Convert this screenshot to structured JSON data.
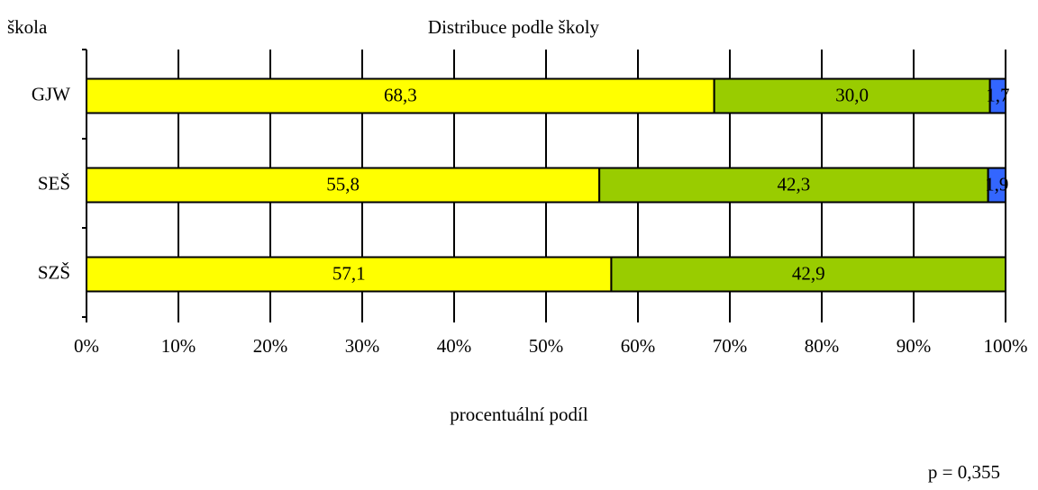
{
  "chart_data": {
    "type": "stacked_bar_horizontal",
    "title": "Distribuce podle školy",
    "y_label": "škola",
    "x_label": "procentuální podíl",
    "annotation": "p = 0,355",
    "categories": [
      "GJW",
      "SEŠ",
      "SZŠ"
    ],
    "series": [
      {
        "color": "#ffff00",
        "values": [
          68.3,
          55.8,
          57.1
        ],
        "value_labels": [
          "68,3",
          "55,8",
          "57,1"
        ]
      },
      {
        "color": "#99cc00",
        "values": [
          30.0,
          42.3,
          42.9
        ],
        "value_labels": [
          "30,0",
          "42,3",
          "42,9"
        ]
      },
      {
        "color": "#3366ff",
        "values": [
          1.7,
          1.9,
          null
        ],
        "value_labels": [
          "1,7",
          "1,9",
          null
        ]
      }
    ],
    "xlim": [
      0,
      100
    ],
    "xticks": [
      {
        "value": 0,
        "label": "0%"
      },
      {
        "value": 10,
        "label": "10%"
      },
      {
        "value": 20,
        "label": "20%"
      },
      {
        "value": 30,
        "label": "30%"
      },
      {
        "value": 40,
        "label": "40%"
      },
      {
        "value": 50,
        "label": "50%"
      },
      {
        "value": 60,
        "label": "60%"
      },
      {
        "value": 70,
        "label": "70%"
      },
      {
        "value": 80,
        "label": "80%"
      },
      {
        "value": 90,
        "label": "90%"
      },
      {
        "value": 100,
        "label": "100%"
      }
    ],
    "grid": true
  }
}
